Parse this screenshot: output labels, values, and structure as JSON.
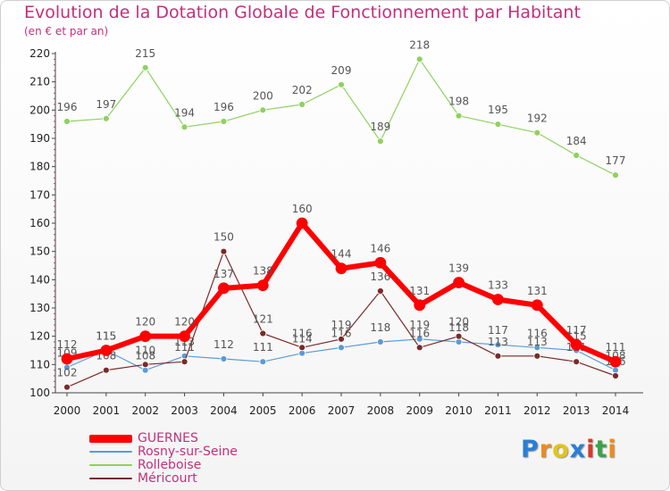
{
  "title": "Evolution de la Dotation Globale de Fonctionnement par Habitant",
  "subtitle": "(en € et par an)",
  "logo": {
    "text": "Proxiti",
    "letters": [
      "P",
      "r",
      "o",
      "x",
      "i",
      "t",
      "i"
    ],
    "colors": [
      "#2a7fd4",
      "#f08a1c",
      "#e3c51b",
      "#2a7fd4",
      "#d63a2f",
      "#3aa34a",
      "#f08a1c"
    ]
  },
  "chart_data": {
    "type": "line",
    "x": [
      "2000",
      "2001",
      "2002",
      "2003",
      "2004",
      "2005",
      "2006",
      "2007",
      "2008",
      "2009",
      "2010",
      "2011",
      "2012",
      "2013",
      "2014"
    ],
    "ylim": [
      100,
      220
    ],
    "yticks": [
      100,
      110,
      120,
      130,
      140,
      150,
      160,
      170,
      180,
      190,
      200,
      210,
      220
    ],
    "grid": false,
    "legend": "bottom-left",
    "series": [
      {
        "name": "Rolleboise",
        "color": "#8fd160",
        "width": 1.2,
        "marker": 3.5,
        "values": [
          196,
          197,
          215,
          194,
          196,
          200,
          202,
          209,
          189,
          218,
          198,
          195,
          192,
          184,
          177
        ]
      },
      {
        "name": "Rosny-sur-Seine",
        "color": "#5b9bd5",
        "width": 1.2,
        "marker": 3.5,
        "values": [
          109,
          115,
          108,
          113,
          112,
          111,
          114,
          116,
          118,
          119,
          118,
          117,
          116,
          115,
          108
        ]
      },
      {
        "name": "Méricourt",
        "color": "#7a2a2a",
        "width": 1.2,
        "marker": 3.5,
        "values": [
          102,
          108,
          110,
          111,
          150,
          121,
          116,
          119,
          136,
          116,
          120,
          113,
          113,
          111,
          106
        ]
      },
      {
        "name": "GUERNES",
        "color": "#ff0000",
        "width": 6,
        "marker": 6,
        "values": [
          112,
          115,
          120,
          120,
          137,
          138,
          160,
          144,
          146,
          131,
          139,
          133,
          131,
          117,
          111
        ]
      }
    ],
    "legend_order": [
      "GUERNES",
      "Rosny-sur-Seine",
      "Rolleboise",
      "Méricourt"
    ]
  }
}
